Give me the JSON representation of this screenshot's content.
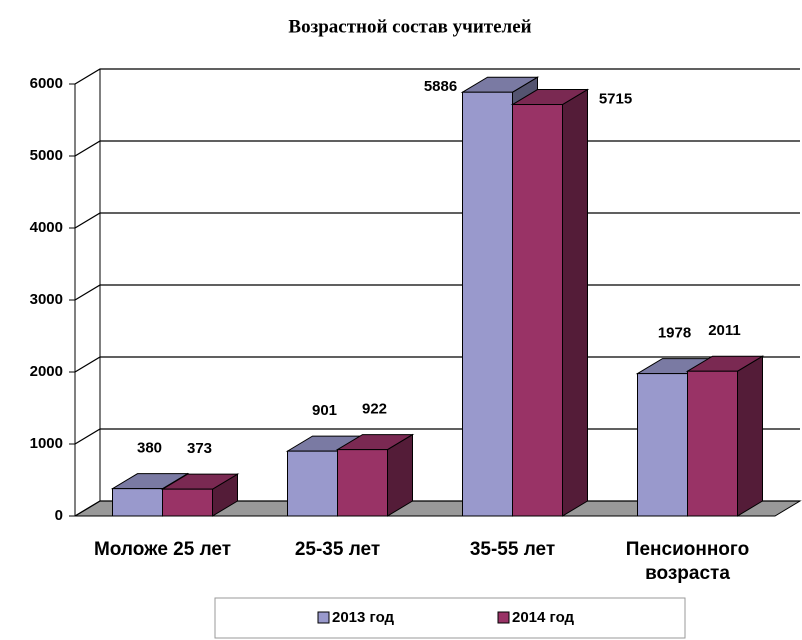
{
  "chart_data": {
    "type": "bar3d",
    "title": "Возрастной состав учителей",
    "categories": [
      "Моложе 25 лет",
      "25-35 лет",
      "35-55 лет",
      "Пенсионного возраста"
    ],
    "series": [
      {
        "name": "2013 год",
        "color": "#9999cc",
        "values": [
          380,
          901,
          5886,
          1978
        ]
      },
      {
        "name": "2014 год",
        "color": "#993366",
        "values": [
          373,
          922,
          5715,
          2011
        ]
      }
    ],
    "ylim": [
      0,
      6000
    ],
    "yticks": [
      0,
      1000,
      2000,
      3000,
      4000,
      5000,
      6000
    ],
    "grid": true,
    "legend": "bottom"
  }
}
